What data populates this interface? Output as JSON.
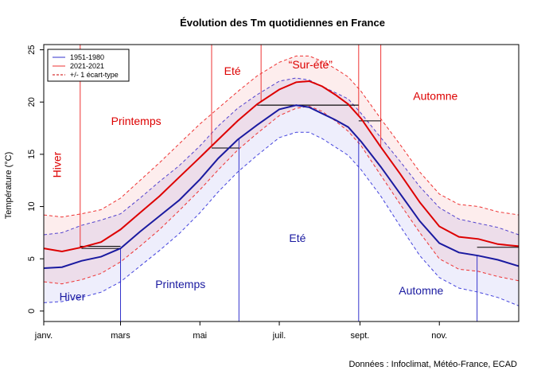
{
  "chart_data": {
    "type": "line",
    "title": "Évolution des Tm quotidiennes en France",
    "xlabel": "",
    "ylabel": "Température (°C)",
    "ylim": [
      -1,
      25.5
    ],
    "xlim": [
      1,
      366
    ],
    "yticks": [
      0,
      5,
      10,
      15,
      20,
      25
    ],
    "xticks": [
      {
        "day": 1,
        "label": "janv."
      },
      {
        "day": 60,
        "label": "mars"
      },
      {
        "day": 121,
        "label": "mai"
      },
      {
        "day": 182,
        "label": "juil."
      },
      {
        "day": 244,
        "label": "sept."
      },
      {
        "day": 305,
        "label": "nov."
      }
    ],
    "grid": false,
    "legend_position": "top-left",
    "legend": [
      {
        "label": "1951-1980",
        "color": "#3333cc",
        "style": "solid"
      },
      {
        "label": "2021-2021",
        "color": "#ee3333",
        "style": "solid"
      },
      {
        "label": "+/- 1 écart-type",
        "color": "#cc0000",
        "style": "dashed"
      }
    ],
    "x": [
      1,
      15,
      30,
      45,
      60,
      75,
      90,
      105,
      121,
      135,
      150,
      165,
      182,
      195,
      205,
      215,
      225,
      235,
      245,
      260,
      275,
      290,
      305,
      320,
      335,
      350,
      366
    ],
    "series": [
      {
        "name": "1951-1980",
        "color": "#1a1aa0",
        "values": [
          4.1,
          4.2,
          4.8,
          5.2,
          6.0,
          7.6,
          9.1,
          10.6,
          12.6,
          14.6,
          16.4,
          17.8,
          19.3,
          19.7,
          19.5,
          18.9,
          18.3,
          17.6,
          16.2,
          13.8,
          11.2,
          8.6,
          6.5,
          5.6,
          5.3,
          4.9,
          4.3
        ]
      },
      {
        "name": "2021-2021",
        "color": "#dd0000",
        "values": [
          6.0,
          5.7,
          6.1,
          6.6,
          7.8,
          9.4,
          11.0,
          12.8,
          14.7,
          16.4,
          18.2,
          19.8,
          21.2,
          21.9,
          22.0,
          21.5,
          20.7,
          19.8,
          18.4,
          15.7,
          13.1,
          10.4,
          8.1,
          7.1,
          6.9,
          6.4,
          6.2
        ]
      }
    ],
    "bands": [
      {
        "series": "1951-1980",
        "color": "#4444dd",
        "lower": [
          0.8,
          0.9,
          1.3,
          1.8,
          2.8,
          4.3,
          5.8,
          7.4,
          9.4,
          11.4,
          13.3,
          14.9,
          16.6,
          17.1,
          17.1,
          16.5,
          15.7,
          14.9,
          13.5,
          11.0,
          8.1,
          5.3,
          3.2,
          2.2,
          1.8,
          1.3,
          0.5
        ],
        "upper": [
          7.3,
          7.5,
          8.2,
          8.7,
          9.3,
          10.8,
          12.4,
          13.9,
          15.8,
          17.7,
          19.4,
          20.7,
          22.0,
          22.3,
          22.1,
          21.5,
          20.9,
          20.3,
          18.9,
          16.6,
          14.3,
          11.9,
          9.9,
          8.8,
          8.4,
          8.0,
          7.3
        ]
      },
      {
        "series": "2021-2021",
        "color": "#ee3333",
        "lower": [
          2.8,
          2.6,
          3.0,
          3.6,
          4.7,
          6.2,
          7.8,
          9.6,
          11.6,
          13.5,
          15.4,
          17.0,
          18.7,
          19.4,
          19.6,
          19.1,
          18.2,
          17.2,
          15.8,
          13.0,
          10.2,
          7.5,
          5.0,
          4.0,
          3.8,
          3.3,
          2.9
        ],
        "upper": [
          9.2,
          9.0,
          9.3,
          9.7,
          10.8,
          12.5,
          14.2,
          16.0,
          17.9,
          19.4,
          21.0,
          22.5,
          23.8,
          24.4,
          24.4,
          23.9,
          23.2,
          22.4,
          21.0,
          18.4,
          15.9,
          13.3,
          11.2,
          10.2,
          10.0,
          9.5,
          9.2
        ]
      }
    ],
    "season_boundaries": [
      {
        "series": "1951-1980",
        "color": "#3333cc",
        "days": [
          60,
          151,
          243,
          334
        ],
        "plateaus": [
          {
            "x0": 30,
            "x1": 60,
            "y": 6.0
          },
          {
            "x0": 135,
            "x1": 151,
            "y": 15.6
          },
          {
            "x0": 165,
            "x1": 243,
            "y": 19.7
          },
          {
            "x0": 334,
            "x1": 366,
            "y": 6.1
          }
        ]
      },
      {
        "series": "2021-2021",
        "color": "#ee3333",
        "days": [
          1,
          29,
          130,
          168,
          243,
          260
        ],
        "plateaus": [
          {
            "x0": 29,
            "x1": 60,
            "y": 6.2
          },
          {
            "x0": 130,
            "x1": 151,
            "y": 15.6
          },
          {
            "x0": 168,
            "x1": 243,
            "y": 19.7
          },
          {
            "x0": 243,
            "x1": 260,
            "y": 18.2
          }
        ]
      }
    ],
    "annotations": [
      {
        "text": "Hiver",
        "color": "#dd0000",
        "day": 14,
        "temp": 14,
        "rotate": true
      },
      {
        "text": "Printemps",
        "color": "#dd0000",
        "day": 72,
        "temp": 17.8
      },
      {
        "text": "Eté",
        "color": "#dd0000",
        "day": 146,
        "temp": 22.6
      },
      {
        "text": "“Sur-été”",
        "color": "#dd0000",
        "day": 206,
        "temp": 23.2
      },
      {
        "text": "Automne",
        "color": "#dd0000",
        "day": 302,
        "temp": 20.2
      },
      {
        "text": "Hiver",
        "color": "#1a1aa0",
        "day": 23,
        "temp": 1.0
      },
      {
        "text": "Printemps",
        "color": "#1a1aa0",
        "day": 106,
        "temp": 2.2
      },
      {
        "text": "Eté",
        "color": "#1a1aa0",
        "day": 196,
        "temp": 6.6
      },
      {
        "text": "Automne",
        "color": "#1a1aa0",
        "day": 291,
        "temp": 1.6
      }
    ]
  },
  "source_note": "Données : Infoclimat, Météo-France, ECAD"
}
